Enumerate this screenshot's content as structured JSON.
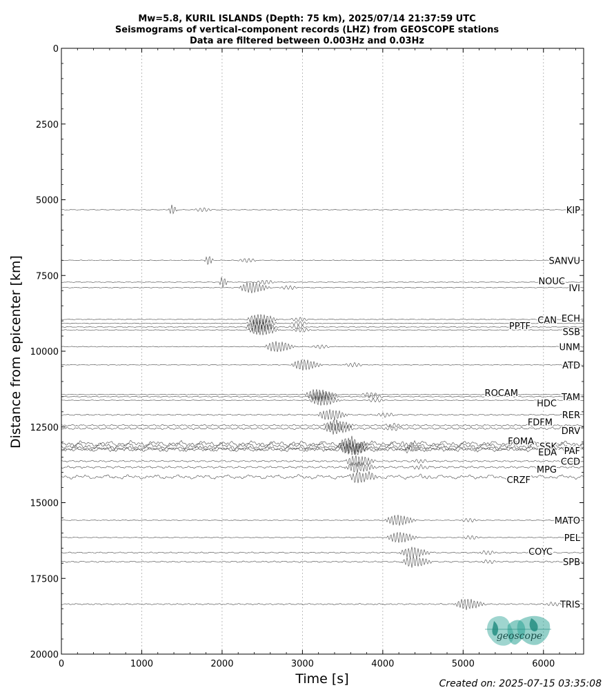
{
  "chart_data": {
    "type": "line",
    "title_lines": [
      "Mw=5.8, KURIL ISLANDS (Depth: 75 km), 2025/07/14 21:37:59 UTC",
      "Seismograms of vertical-component records (LHZ) from GEOSCOPE stations",
      "Data are filtered between 0.003Hz and 0.03Hz"
    ],
    "xlabel": "Time [s]",
    "ylabel": "Distance from epicenter [km]",
    "xlim": [
      0,
      6500
    ],
    "ylim": [
      20000,
      0
    ],
    "y_inverted": true,
    "xticks": [
      0,
      1000,
      2000,
      3000,
      4000,
      5000,
      6000
    ],
    "yticks": [
      0,
      2500,
      5000,
      7500,
      10000,
      12500,
      15000,
      17500,
      20000
    ],
    "grid": "x-dotted",
    "stations": [
      {
        "name": "KIP",
        "distance": 5330,
        "arrival": 1330
      },
      {
        "name": "SANVU",
        "distance": 7000,
        "arrival": 1780
      },
      {
        "name": "NOUC",
        "distance": 7720,
        "arrival": 1960
      },
      {
        "name": "IVI",
        "distance": 7900,
        "arrival": 2200
      },
      {
        "name": "ECH",
        "distance": 8950,
        "arrival": 2300
      },
      {
        "name": "CAN",
        "distance": 9080,
        "arrival": 2300
      },
      {
        "name": "PPTF",
        "distance": 9200,
        "arrival": 2280
      },
      {
        "name": "SSB",
        "distance": 9300,
        "arrival": 2320
      },
      {
        "name": "UNM",
        "distance": 9850,
        "arrival": 2520
      },
      {
        "name": "ATD",
        "distance": 10450,
        "arrival": 2850
      },
      {
        "name": "ROCAM",
        "distance": 11430,
        "arrival": 3020
      },
      {
        "name": "TAM",
        "distance": 11500,
        "arrival": 3060
      },
      {
        "name": "HDC",
        "distance": 11620,
        "arrival": 3080
      },
      {
        "name": "RER",
        "distance": 12100,
        "arrival": 3180
      },
      {
        "name": "FDFM",
        "distance": 12450,
        "arrival": 3250
      },
      {
        "name": "DRV",
        "distance": 12550,
        "arrival": 3250
      },
      {
        "name": "FOMA",
        "distance": 13050,
        "arrival": 3420
      },
      {
        "name": "SSK",
        "distance": 13130,
        "arrival": 3440
      },
      {
        "name": "EDA",
        "distance": 13230,
        "arrival": 3440
      },
      {
        "name": "PAF",
        "distance": 13230,
        "arrival": 3460
      },
      {
        "name": "CCD",
        "distance": 13630,
        "arrival": 3520
      },
      {
        "name": "MPG",
        "distance": 13830,
        "arrival": 3520
      },
      {
        "name": "CRZF",
        "distance": 14150,
        "arrival": 3560
      },
      {
        "name": "MATO",
        "distance": 15580,
        "arrival": 4020
      },
      {
        "name": "PEL",
        "distance": 16150,
        "arrival": 4040
      },
      {
        "name": "COYC",
        "distance": 16650,
        "arrival": 4200
      },
      {
        "name": "SPB",
        "distance": 16950,
        "arrival": 4220
      },
      {
        "name": "TRIS",
        "distance": 18350,
        "arrival": 4880
      }
    ]
  },
  "footer": "Created on: 2025-07-15 03:35:08",
  "logo": {
    "text": "geoscope",
    "color": "#2aa294"
  }
}
